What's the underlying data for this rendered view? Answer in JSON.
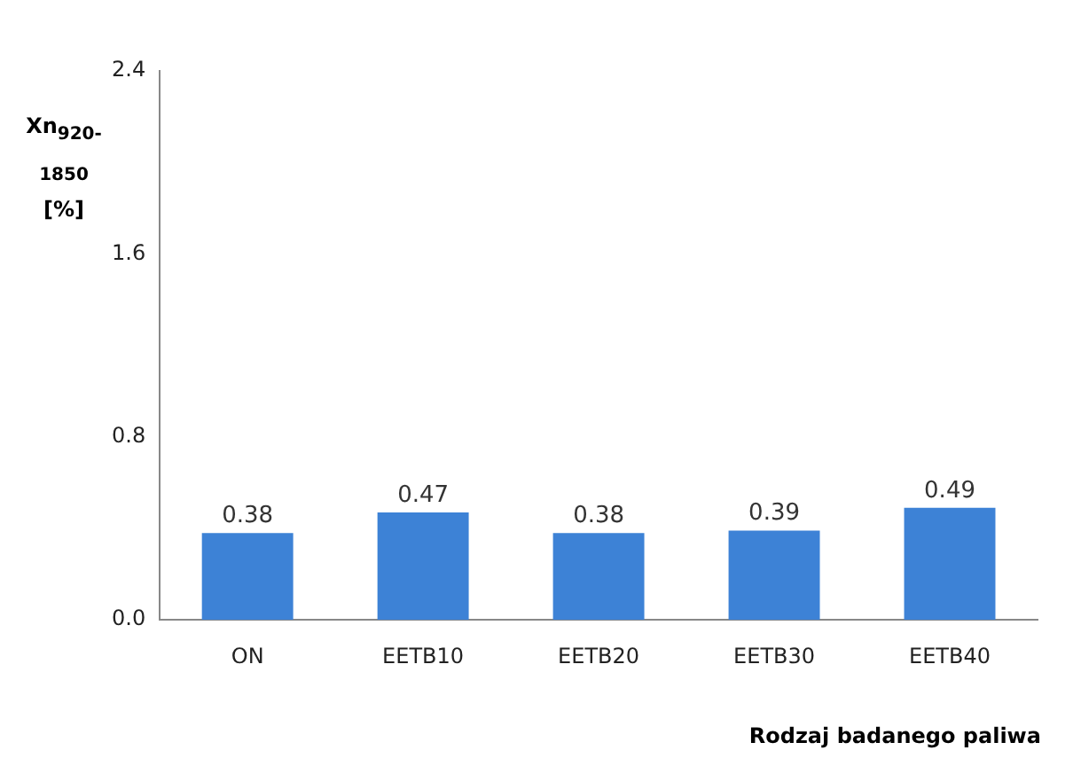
{
  "chart_data": {
    "type": "bar",
    "ylabel": "Xn$_{920-1850}$\n[%]",
    "xlabel": "Rodzaj badanego paliwa",
    "categories": [
      "ON",
      "EETB10",
      "EETB20",
      "EETB30",
      "EETB40"
    ],
    "values": [
      0.38,
      0.47,
      0.38,
      0.39,
      0.49
    ],
    "color": "#3d82d6",
    "ylim": [
      0,
      2.4
    ],
    "yticks": [
      {
        "value": 0,
        "label": "0.0"
      },
      0.8,
      1.6,
      2.4
    ],
    "data_labels": true,
    "grid": false,
    "legend": false
  }
}
